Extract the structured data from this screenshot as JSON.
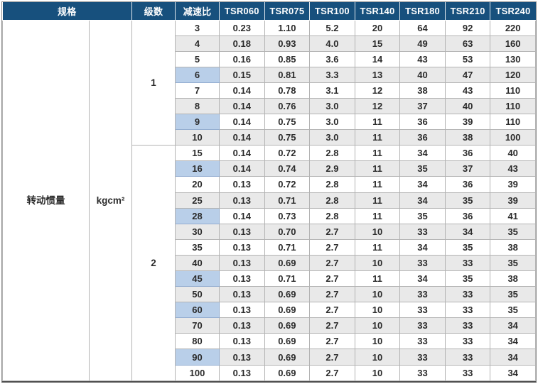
{
  "colors": {
    "header_bg": "#17507d",
    "header_text": "#ffffff",
    "stripe": "#e9e9e9",
    "highlight": "#b9cfe9",
    "grid": "#b3b3b3"
  },
  "header": {
    "spec": "规格",
    "stages": "级数",
    "ratio": "减速比",
    "models": [
      "TSR060",
      "TSR075",
      "TSR100",
      "TSR140",
      "TSR180",
      "TSR210",
      "TSR240"
    ]
  },
  "spec": {
    "label": "转动惯量",
    "unit": "kgcm²"
  },
  "groups": [
    {
      "stage": "1",
      "rows": [
        {
          "ratio": "3",
          "highlighted": false,
          "values": [
            "0.23",
            "1.10",
            "5.2",
            "20",
            "64",
            "92",
            "220"
          ]
        },
        {
          "ratio": "4",
          "highlighted": false,
          "values": [
            "0.18",
            "0.93",
            "4.0",
            "15",
            "49",
            "63",
            "160"
          ]
        },
        {
          "ratio": "5",
          "highlighted": false,
          "values": [
            "0.16",
            "0.85",
            "3.6",
            "14",
            "43",
            "53",
            "130"
          ]
        },
        {
          "ratio": "6",
          "highlighted": true,
          "values": [
            "0.15",
            "0.81",
            "3.3",
            "13",
            "40",
            "47",
            "120"
          ]
        },
        {
          "ratio": "7",
          "highlighted": false,
          "values": [
            "0.14",
            "0.78",
            "3.1",
            "12",
            "38",
            "43",
            "110"
          ]
        },
        {
          "ratio": "8",
          "highlighted": false,
          "values": [
            "0.14",
            "0.76",
            "3.0",
            "12",
            "37",
            "40",
            "110"
          ]
        },
        {
          "ratio": "9",
          "highlighted": true,
          "values": [
            "0.14",
            "0.75",
            "3.0",
            "11",
            "36",
            "39",
            "110"
          ]
        },
        {
          "ratio": "10",
          "highlighted": false,
          "values": [
            "0.14",
            "0.75",
            "3.0",
            "11",
            "36",
            "38",
            "100"
          ]
        }
      ]
    },
    {
      "stage": "2",
      "rows": [
        {
          "ratio": "15",
          "highlighted": false,
          "values": [
            "0.14",
            "0.72",
            "2.8",
            "11",
            "34",
            "36",
            "40"
          ]
        },
        {
          "ratio": "16",
          "highlighted": true,
          "values": [
            "0.14",
            "0.74",
            "2.9",
            "11",
            "35",
            "37",
            "43"
          ]
        },
        {
          "ratio": "20",
          "highlighted": false,
          "values": [
            "0.13",
            "0.72",
            "2.8",
            "11",
            "34",
            "36",
            "39"
          ]
        },
        {
          "ratio": "25",
          "highlighted": false,
          "values": [
            "0.13",
            "0.71",
            "2.8",
            "11",
            "34",
            "35",
            "39"
          ]
        },
        {
          "ratio": "28",
          "highlighted": true,
          "values": [
            "0.14",
            "0.73",
            "2.8",
            "11",
            "35",
            "36",
            "41"
          ]
        },
        {
          "ratio": "30",
          "highlighted": false,
          "values": [
            "0.13",
            "0.70",
            "2.7",
            "10",
            "33",
            "34",
            "35"
          ]
        },
        {
          "ratio": "35",
          "highlighted": false,
          "values": [
            "0.13",
            "0.71",
            "2.7",
            "11",
            "34",
            "35",
            "38"
          ]
        },
        {
          "ratio": "40",
          "highlighted": false,
          "values": [
            "0.13",
            "0.69",
            "2.7",
            "10",
            "33",
            "33",
            "35"
          ]
        },
        {
          "ratio": "45",
          "highlighted": true,
          "values": [
            "0.13",
            "0.71",
            "2.7",
            "11",
            "34",
            "35",
            "38"
          ]
        },
        {
          "ratio": "50",
          "highlighted": false,
          "values": [
            "0.13",
            "0.69",
            "2.7",
            "10",
            "33",
            "33",
            "35"
          ]
        },
        {
          "ratio": "60",
          "highlighted": true,
          "values": [
            "0.13",
            "0.69",
            "2.7",
            "10",
            "33",
            "33",
            "35"
          ]
        },
        {
          "ratio": "70",
          "highlighted": false,
          "values": [
            "0.13",
            "0.69",
            "2.7",
            "10",
            "33",
            "33",
            "34"
          ]
        },
        {
          "ratio": "80",
          "highlighted": false,
          "values": [
            "0.13",
            "0.69",
            "2.7",
            "10",
            "33",
            "33",
            "34"
          ]
        },
        {
          "ratio": "90",
          "highlighted": true,
          "values": [
            "0.13",
            "0.69",
            "2.7",
            "10",
            "33",
            "33",
            "34"
          ]
        },
        {
          "ratio": "100",
          "highlighted": false,
          "values": [
            "0.13",
            "0.69",
            "2.7",
            "10",
            "33",
            "33",
            "34"
          ]
        }
      ]
    }
  ]
}
